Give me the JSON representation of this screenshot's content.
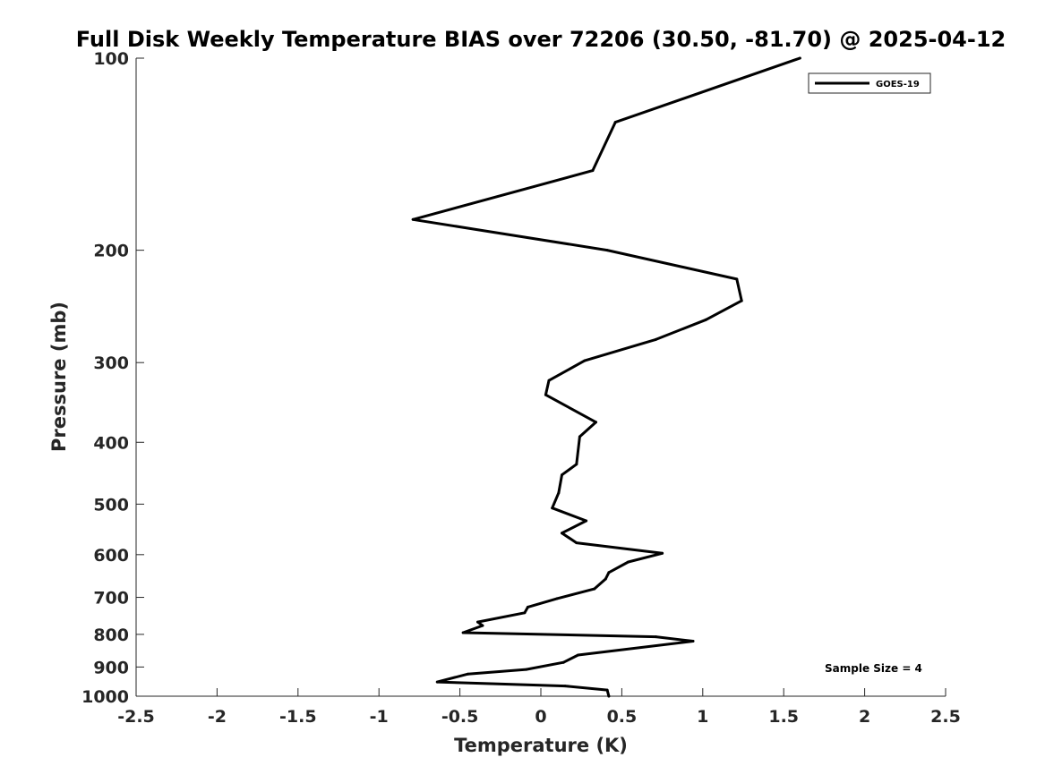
{
  "chart_data": {
    "type": "line",
    "title": "Full Disk Weekly Temperature BIAS over 72206 (30.50, -81.70) @ 2025-04-12",
    "xlabel": "Temperature (K)",
    "ylabel": "Pressure (mb)",
    "xlim": [
      -2.5,
      2.5
    ],
    "ylim": [
      1000,
      100
    ],
    "y_scale": "log",
    "y_reversed": true,
    "grid": false,
    "legend_position": "top-right",
    "annotation": "Sample Size = 4",
    "x_ticks": [
      -2.5,
      -2,
      -1.5,
      -1,
      -0.5,
      0,
      0.5,
      1,
      1.5,
      2,
      2.5
    ],
    "x_tick_labels": [
      "-2.5",
      "-2",
      "-1.5",
      "-1",
      "-0.5",
      "0",
      "0.5",
      "1",
      "1.5",
      "2",
      "2.5"
    ],
    "y_ticks": [
      100,
      200,
      300,
      400,
      500,
      600,
      700,
      800,
      900,
      1000
    ],
    "y_tick_labels": [
      "100",
      "200",
      "300",
      "400",
      "500",
      "600",
      "700",
      "800",
      "900",
      "1000"
    ],
    "series": [
      {
        "name": "GOES-19",
        "color": "#000000",
        "points": [
          {
            "t": 1.6,
            "p": 100
          },
          {
            "t": 0.46,
            "p": 126
          },
          {
            "t": 0.32,
            "p": 150
          },
          {
            "t": -0.79,
            "p": 179
          },
          {
            "t": 0.41,
            "p": 200
          },
          {
            "t": 1.21,
            "p": 222
          },
          {
            "t": 1.24,
            "p": 240
          },
          {
            "t": 1.02,
            "p": 257
          },
          {
            "t": 0.71,
            "p": 276
          },
          {
            "t": 0.27,
            "p": 298
          },
          {
            "t": 0.05,
            "p": 320
          },
          {
            "t": 0.03,
            "p": 337
          },
          {
            "t": 0.34,
            "p": 372
          },
          {
            "t": 0.24,
            "p": 392
          },
          {
            "t": 0.22,
            "p": 433
          },
          {
            "t": 0.13,
            "p": 450
          },
          {
            "t": 0.11,
            "p": 480
          },
          {
            "t": 0.07,
            "p": 507
          },
          {
            "t": 0.28,
            "p": 531
          },
          {
            "t": 0.13,
            "p": 555
          },
          {
            "t": 0.22,
            "p": 575
          },
          {
            "t": 0.75,
            "p": 597
          },
          {
            "t": 0.54,
            "p": 616
          },
          {
            "t": 0.42,
            "p": 640
          },
          {
            "t": 0.4,
            "p": 655
          },
          {
            "t": 0.33,
            "p": 679
          },
          {
            "t": 0.1,
            "p": 703
          },
          {
            "t": -0.08,
            "p": 725
          },
          {
            "t": -0.1,
            "p": 740
          },
          {
            "t": -0.39,
            "p": 765
          },
          {
            "t": -0.36,
            "p": 775
          },
          {
            "t": -0.48,
            "p": 795
          },
          {
            "t": 0.71,
            "p": 807
          },
          {
            "t": 0.94,
            "p": 820
          },
          {
            "t": 0.23,
            "p": 862
          },
          {
            "t": 0.14,
            "p": 885
          },
          {
            "t": -0.09,
            "p": 908
          },
          {
            "t": -0.45,
            "p": 923
          },
          {
            "t": -0.64,
            "p": 950
          },
          {
            "t": 0.15,
            "p": 964
          },
          {
            "t": 0.41,
            "p": 978
          },
          {
            "t": 0.42,
            "p": 1000
          }
        ]
      }
    ]
  }
}
